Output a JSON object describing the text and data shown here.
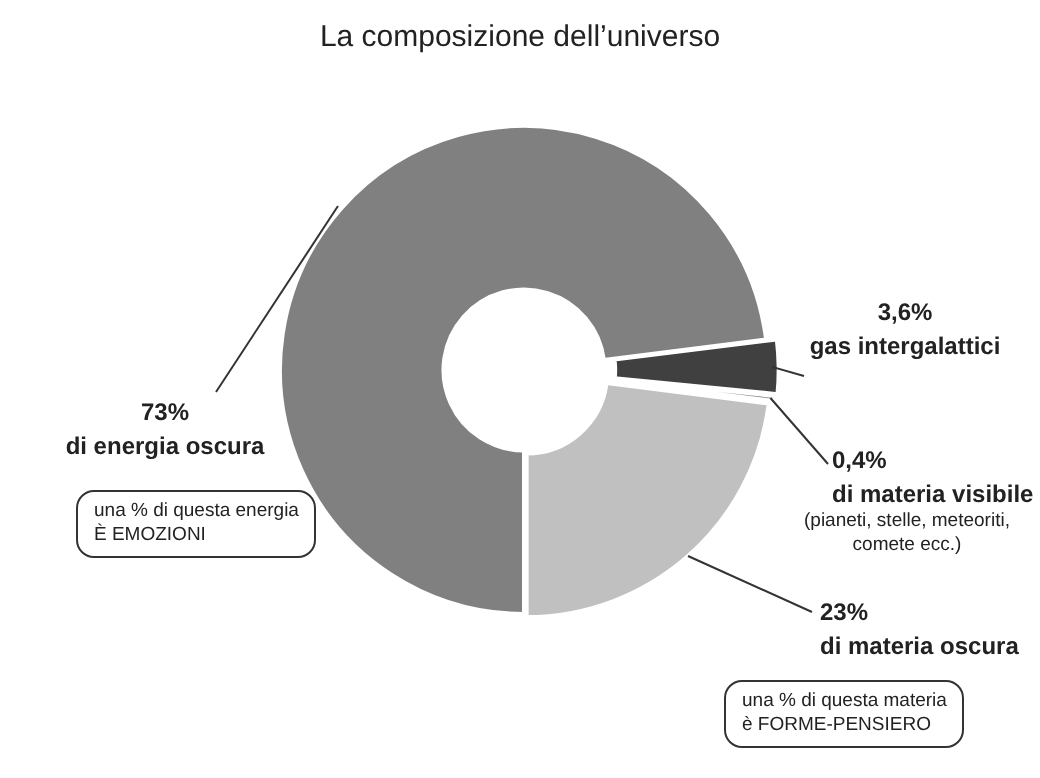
{
  "chart_data": {
    "type": "donut",
    "title": "La composizione dell’universo",
    "categories": [
      "di energia oscura",
      "gas intergalattici",
      "di materia visibile",
      "di materia oscura"
    ],
    "values": [
      73,
      3.6,
      0.4,
      23
    ],
    "value_labels": [
      "73%",
      "3,6%",
      "0,4%",
      "23%"
    ],
    "colors": [
      "#808080",
      "#404040",
      "#8f8f8f",
      "#c0c0c0"
    ],
    "legend": false,
    "annotations": [
      "una % di questa energia\nÈ EMOZIONI",
      "(pianeti, stelle, meteoriti,\ncomete ecc.)",
      "una % di questa materia\nè FORME-PENSIERO"
    ]
  }
}
